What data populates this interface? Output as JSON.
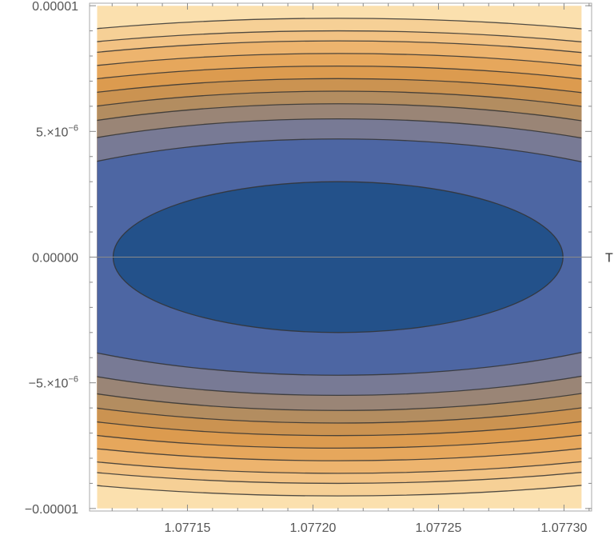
{
  "chart_data": {
    "type": "contour",
    "title": "",
    "x_axis_label": "T",
    "y_axis_label": "",
    "x_range": [
      1.077111,
      1.077311
    ],
    "y_range": [
      -1.01e-05,
      1.01e-05
    ],
    "x_ticks": [
      {
        "value": 1.07715,
        "label": "1.07715"
      },
      {
        "value": 1.0772,
        "label": "1.07720"
      },
      {
        "value": 1.07725,
        "label": "1.07725"
      },
      {
        "value": 1.0773,
        "label": "1.07730"
      }
    ],
    "y_ticks": [
      {
        "value": 1e-05,
        "label": "0.00001",
        "sup": ""
      },
      {
        "value": 5e-06,
        "label": "5.×10",
        "sup": "−6"
      },
      {
        "value": 0,
        "label": "0.00000",
        "sup": ""
      },
      {
        "value": -5e-06,
        "label": "−5.×10",
        "sup": "−6"
      },
      {
        "value": -1e-05,
        "label": "−0.00001",
        "sup": ""
      }
    ],
    "center": {
      "x": 1.07721,
      "y": 0.0
    },
    "contour_semi_axes": [
      {
        "a": 8.96e-05,
        "b": 3e-06
      },
      {
        "a": 0.000164,
        "b": 4.7e-06
      },
      {
        "a": 0.000191,
        "b": 5.5e-06
      },
      {
        "a": 0.000212,
        "b": 6.1e-06
      },
      {
        "a": 0.000232,
        "b": 6.6e-06
      },
      {
        "a": 0.00025,
        "b": 7.1e-06
      },
      {
        "a": 0.000268,
        "b": 7.6e-06
      },
      {
        "a": 0.000284,
        "b": 8.1e-06
      },
      {
        "a": 0.0003,
        "b": 8.6e-06
      },
      {
        "a": 0.000315,
        "b": 9e-06
      },
      {
        "a": 0.00033,
        "b": 9.5e-06
      }
    ],
    "band_colors": [
      "#23518a",
      "#4d66a3",
      "#787a95",
      "#9a8576",
      "#b38d60",
      "#cb9351",
      "#dc9b4f",
      "#e6a75c",
      "#edb46e",
      "#f2c283",
      "#f6d096",
      "#fbe0ae"
    ],
    "contour_line_color": "#333333",
    "grid": false,
    "legend": "none"
  }
}
